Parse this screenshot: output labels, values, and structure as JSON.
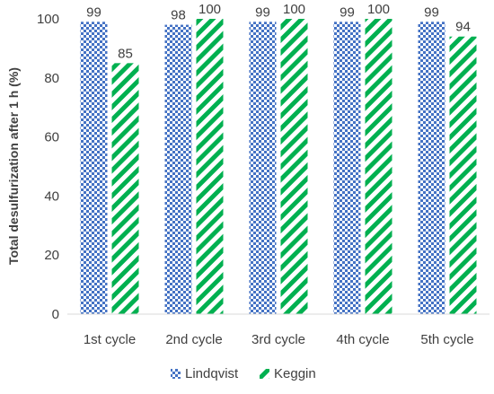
{
  "chart_data": {
    "type": "bar",
    "categories": [
      "1st cycle",
      "2nd cycle",
      "3rd cycle",
      "4th cycle",
      "5th cycle"
    ],
    "series": [
      {
        "name": "Lindqvist",
        "values": [
          99,
          98,
          99,
          99,
          99
        ],
        "color": "#4472C4",
        "pattern": "checker"
      },
      {
        "name": "Keggin",
        "values": [
          85,
          100,
          100,
          100,
          94
        ],
        "color": "#00B050",
        "pattern": "diagonal-stripes"
      }
    ],
    "data_labels": [
      [
        "99",
        "98",
        "99",
        "99",
        "99"
      ],
      [
        "85",
        "100",
        "100",
        "100",
        "94"
      ]
    ],
    "ylabel": "Total desulfurization after 1 h (%)",
    "xlabel": "",
    "ylim": [
      0,
      100
    ],
    "yticks": [
      0,
      20,
      40,
      60,
      80,
      100
    ],
    "ytick_labels": [
      "0",
      "20",
      "40",
      "60",
      "80",
      "100"
    ],
    "grid": false,
    "legend_position": "bottom"
  }
}
